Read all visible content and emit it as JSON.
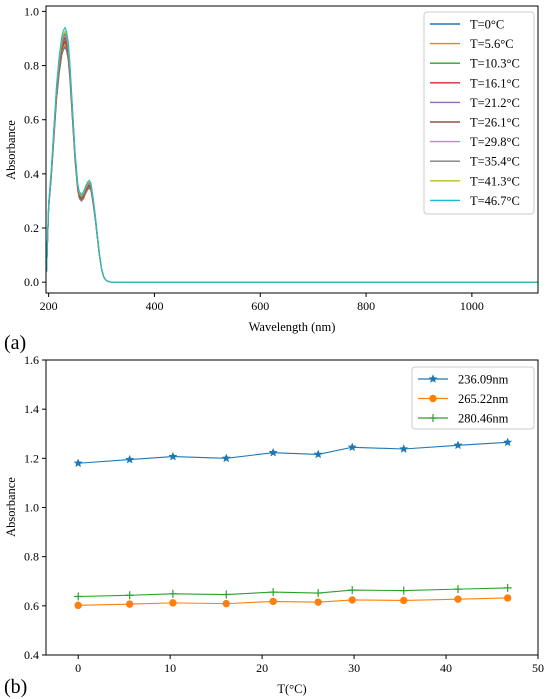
{
  "chart_data": [
    {
      "type": "line",
      "panel_label": "(a)",
      "xlabel": "Wavelength (nm)",
      "ylabel": "Absorbance",
      "xlim": [
        195,
        1125
      ],
      "ylim": [
        -0.04,
        1.02
      ],
      "xticks": [
        200,
        400,
        600,
        800,
        1000
      ],
      "yticks": [
        0.0,
        0.2,
        0.4,
        0.6,
        0.8,
        1.0
      ],
      "xtick_labels": [
        "200",
        "400",
        "600",
        "800",
        "1000"
      ],
      "ytick_labels": [
        "0.0",
        "0.2",
        "0.4",
        "0.6",
        "0.8",
        "1.0"
      ],
      "legend": "top-right",
      "grid": false,
      "base_spectrum": {
        "x": [
          196,
          200,
          205,
          210,
          215,
          220,
          225,
          228,
          231,
          234,
          237,
          240,
          245,
          250,
          255,
          258,
          262,
          266,
          270,
          274,
          277,
          280,
          284,
          288,
          292,
          296,
          300,
          304,
          308,
          312,
          316,
          320,
          330,
          350,
          400,
          500,
          600,
          700,
          800,
          900,
          1000,
          1100,
          1125
        ],
        "y": [
          0.04,
          0.28,
          0.4,
          0.55,
          0.7,
          0.8,
          0.87,
          0.89,
          0.9,
          0.885,
          0.85,
          0.78,
          0.62,
          0.46,
          0.35,
          0.32,
          0.31,
          0.32,
          0.34,
          0.355,
          0.36,
          0.35,
          0.3,
          0.24,
          0.17,
          0.1,
          0.05,
          0.02,
          0.008,
          0.003,
          0.001,
          0.0,
          0.0,
          0.0,
          0.0,
          0.0,
          0.0,
          0.0,
          0.0,
          0.0,
          0.0,
          0.0,
          0.0
        ]
      },
      "series": [
        {
          "name": "T=0°C",
          "color": "#1f77b4",
          "scale": 0.965
        },
        {
          "name": "T=5.6°C",
          "color": "#ff7f0e",
          "scale": 0.975
        },
        {
          "name": "T=10.3°C",
          "color": "#2ca02c",
          "scale": 0.985
        },
        {
          "name": "T=16.1°C",
          "color": "#d62728",
          "scale": 0.99
        },
        {
          "name": "T=21.2°C",
          "color": "#9467bd",
          "scale": 1.0
        },
        {
          "name": "T=26.1°C",
          "color": "#8c564b",
          "scale": 1.005
        },
        {
          "name": "T=29.8°C",
          "color": "#e377c2",
          "scale": 1.015
        },
        {
          "name": "T=35.4°C",
          "color": "#7f7f7f",
          "scale": 1.02
        },
        {
          "name": "T=41.3°C",
          "color": "#bcbd22",
          "scale": 1.03
        },
        {
          "name": "T=46.7°C",
          "color": "#17becf",
          "scale": 1.045
        }
      ]
    },
    {
      "type": "line",
      "panel_label": "(b)",
      "xlabel": "T(°C)",
      "ylabel": "Absorbance",
      "xlim": [
        -3.5,
        50
      ],
      "ylim": [
        0.4,
        1.6
      ],
      "xticks": [
        0,
        10,
        20,
        30,
        40,
        50
      ],
      "yticks": [
        0.4,
        0.6,
        0.8,
        1.0,
        1.2,
        1.4,
        1.6
      ],
      "xtick_labels": [
        "0",
        "10",
        "20",
        "30",
        "40",
        "50"
      ],
      "ytick_labels": [
        "0.4",
        "0.6",
        "0.8",
        "1.0",
        "1.2",
        "1.4",
        "1.6"
      ],
      "legend": "top-right",
      "grid": false,
      "x": [
        0,
        5.6,
        10.3,
        16.1,
        21.2,
        26.1,
        29.8,
        35.4,
        41.3,
        46.7
      ],
      "series": [
        {
          "name": "236.09nm",
          "color": "#1f77b4",
          "marker": "star",
          "values": [
            1.18,
            1.195,
            1.207,
            1.2,
            1.223,
            1.216,
            1.245,
            1.238,
            1.253,
            1.265
          ]
        },
        {
          "name": "265.22nm",
          "color": "#ff7f0e",
          "marker": "circle",
          "values": [
            0.602,
            0.607,
            0.612,
            0.609,
            0.618,
            0.615,
            0.624,
            0.622,
            0.627,
            0.632
          ]
        },
        {
          "name": "280.46nm",
          "color": "#2ca02c",
          "marker": "plus",
          "values": [
            0.638,
            0.643,
            0.649,
            0.646,
            0.656,
            0.652,
            0.664,
            0.662,
            0.668,
            0.673
          ]
        }
      ]
    }
  ]
}
